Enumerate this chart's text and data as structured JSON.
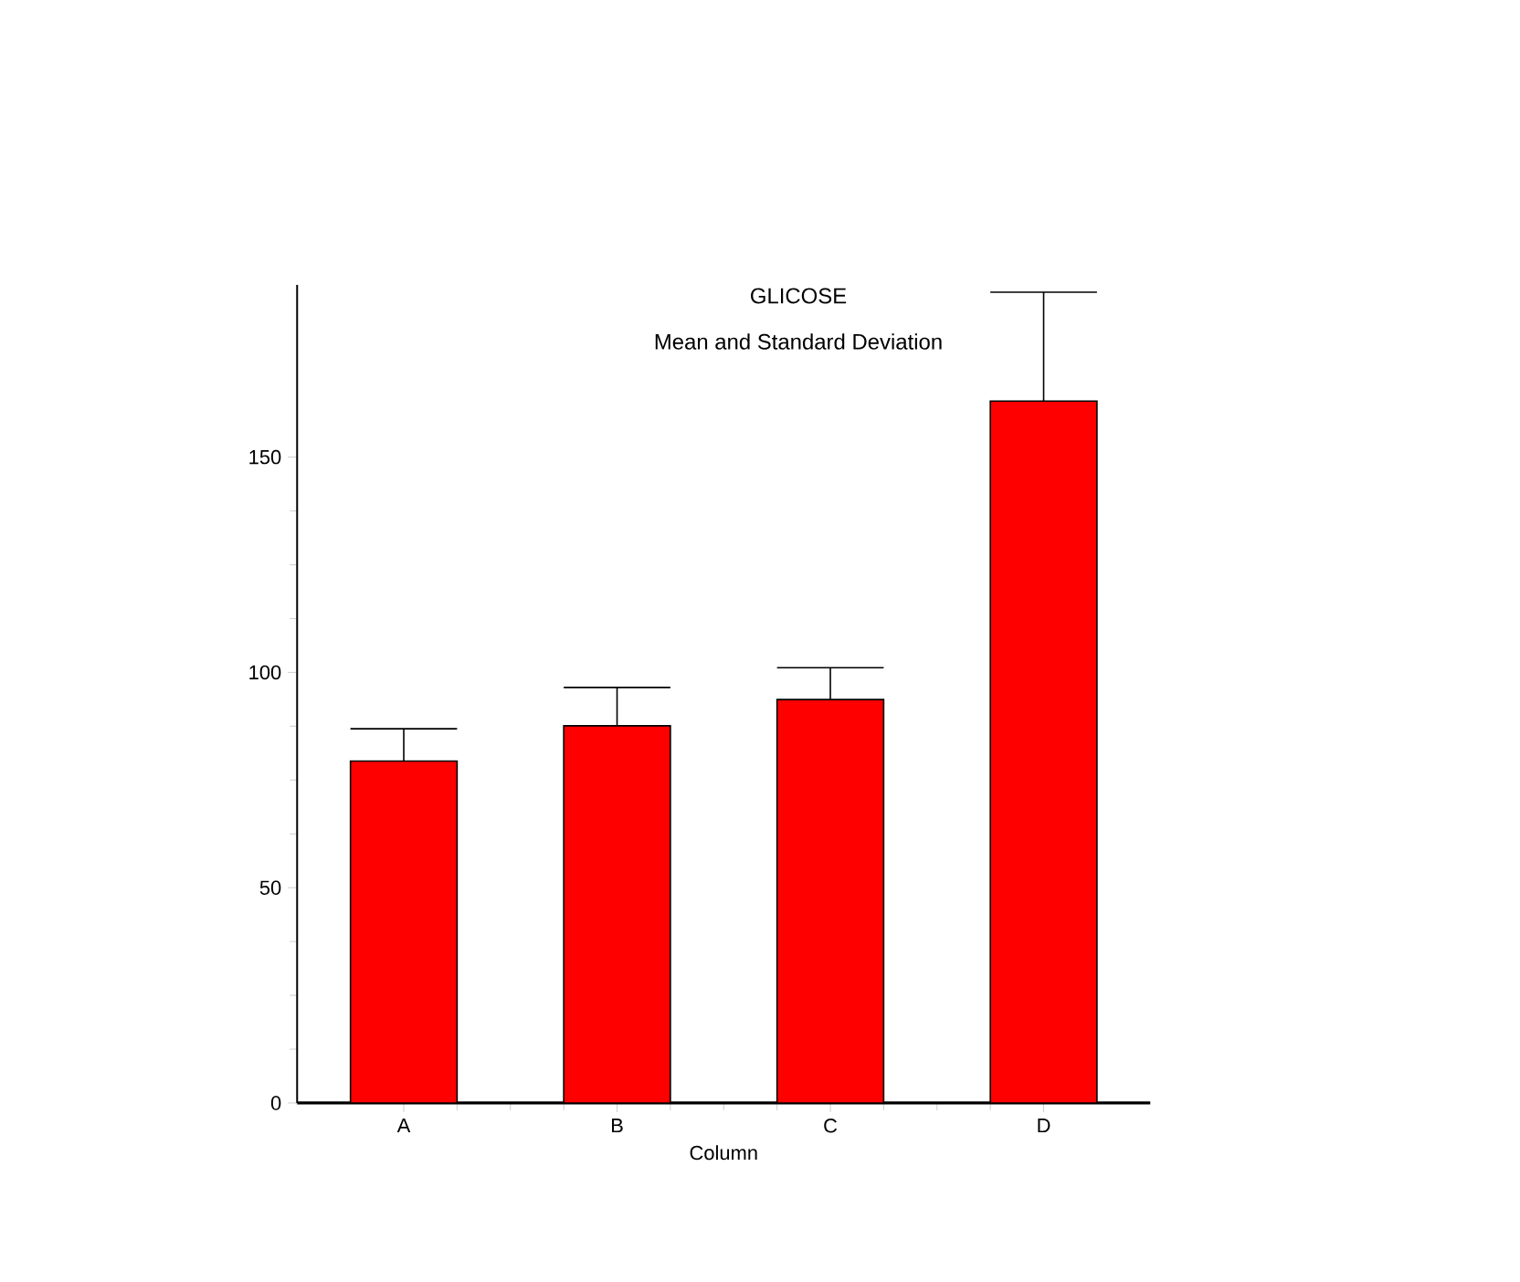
{
  "chart_data": {
    "type": "bar",
    "title": "GLICOSE",
    "subtitle": "Mean and Standard Deviation",
    "xlabel": "Column",
    "categories": [
      "A",
      "B",
      "C",
      "D"
    ],
    "values": [
      79.4,
      87.6,
      93.7,
      163.0
    ],
    "errors": [
      [
        79.4,
        86.9
      ],
      [
        87.6,
        96.5
      ],
      [
        93.7,
        101.1
      ],
      [
        163.0,
        188.3
      ]
    ],
    "color": "#ff0000",
    "ylim": [
      0,
      190
    ],
    "yticks": [
      0,
      50,
      100,
      150
    ],
    "grid": false
  }
}
